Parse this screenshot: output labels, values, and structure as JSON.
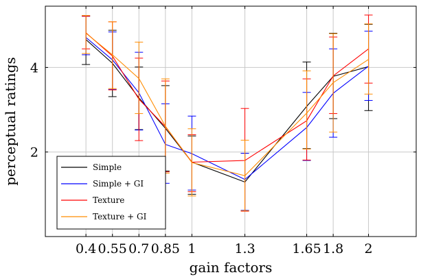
{
  "chart_data": {
    "type": "line",
    "xlabel": "gain factors",
    "ylabel": "perceptual ratings",
    "xlim": [
      0.17,
      2.27
    ],
    "ylim": [
      0.0,
      5.45
    ],
    "xticks": [
      0.4,
      0.55,
      0.7,
      0.85,
      1,
      1.3,
      1.65,
      1.8,
      2
    ],
    "xtick_labels": [
      "0.4",
      "0.55",
      "0.7",
      "0.85",
      "1",
      "1.3",
      "1.65",
      "1.8",
      "2"
    ],
    "yticks": [
      2,
      4
    ],
    "ytick_labels": [
      "2",
      "4"
    ],
    "grid": true,
    "legend_position": "bottom-left",
    "x": [
      0.4,
      0.55,
      0.7,
      0.85,
      1,
      1.3,
      1.65,
      1.8,
      2
    ],
    "series": [
      {
        "name": "Simple",
        "color": "#000000",
        "values": [
          4.66,
          4.1,
          3.28,
          2.56,
          1.76,
          1.29,
          3.08,
          3.79,
          4.02
        ],
        "err_low": [
          4.07,
          3.31,
          2.53,
          1.55,
          1.0,
          0.61,
          2.08,
          2.79,
          2.98
        ],
        "err_high": [
          5.22,
          4.88,
          4.01,
          3.57,
          2.38,
          1.97,
          4.13,
          4.81,
          5.02
        ]
      },
      {
        "name": "Simple + GI",
        "color": "#0000ff",
        "values": [
          4.71,
          4.18,
          3.4,
          2.18,
          1.96,
          1.35,
          2.58,
          3.39,
          4.03
        ],
        "err_low": [
          4.3,
          3.48,
          2.52,
          1.26,
          1.1,
          0.62,
          1.8,
          2.35,
          3.22
        ],
        "err_high": [
          5.22,
          4.84,
          4.36,
          3.14,
          2.85,
          1.97,
          3.41,
          4.44,
          4.86
        ]
      },
      {
        "name": "Texture",
        "color": "#ff0000",
        "values": [
          4.82,
          4.27,
          3.25,
          2.6,
          1.76,
          1.8,
          2.74,
          3.8,
          4.44
        ],
        "err_low": [
          4.44,
          3.47,
          2.27,
          1.53,
          1.06,
          0.6,
          1.81,
          2.91,
          3.63
        ],
        "err_high": [
          5.21,
          5.08,
          4.22,
          3.68,
          2.41,
          3.03,
          3.73,
          4.72,
          5.24
        ]
      },
      {
        "name": "Texture + GI",
        "color": "#ff8c00",
        "values": [
          4.81,
          4.3,
          3.74,
          2.61,
          1.75,
          1.44,
          2.92,
          3.64,
          4.19
        ],
        "err_low": [
          4.33,
          3.5,
          2.91,
          1.5,
          0.96,
          0.61,
          2.07,
          2.47,
          3.37
        ],
        "err_high": [
          5.23,
          5.08,
          4.6,
          3.73,
          2.55,
          2.28,
          3.92,
          4.8,
          5.03
        ]
      }
    ]
  }
}
